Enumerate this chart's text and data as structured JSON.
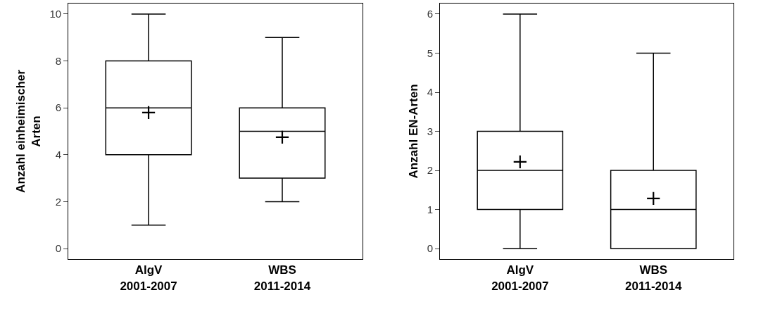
{
  "chart_data": [
    {
      "type": "box",
      "categories": [
        "AlgV\n2001-2007",
        "WBS\n2011-2014"
      ],
      "ylabel": "Anzahl einheimischer\nArten",
      "ylim": [
        -0.45,
        10.45
      ],
      "yticks": [
        0,
        2,
        4,
        6,
        8,
        10
      ],
      "series": [
        {
          "color": "#000000",
          "boxes": [
            {
              "low": 1,
              "q1": 4,
              "median": 6,
              "q3": 8,
              "high": 10,
              "mean": 5.8
            },
            {
              "low": 2,
              "q1": 3,
              "median": 5,
              "q3": 6,
              "high": 9,
              "mean": 4.75
            }
          ]
        }
      ]
    },
    {
      "type": "box",
      "categories": [
        "AlgV\n2001-2007",
        "WBS\n2011-2014"
      ],
      "ylabel": "Anzahl EN-Arten",
      "ylim": [
        -0.27,
        6.27
      ],
      "yticks": [
        0,
        1,
        2,
        3,
        4,
        5,
        6
      ],
      "series": [
        {
          "color": "#000000",
          "boxes": [
            {
              "low": 0,
              "q1": 1,
              "median": 2,
              "q3": 3,
              "high": 6,
              "mean": 2.22
            },
            {
              "low": 0,
              "q1": 0,
              "median": 1,
              "q3": 2,
              "high": 5,
              "mean": 1.28
            }
          ]
        }
      ]
    }
  ]
}
